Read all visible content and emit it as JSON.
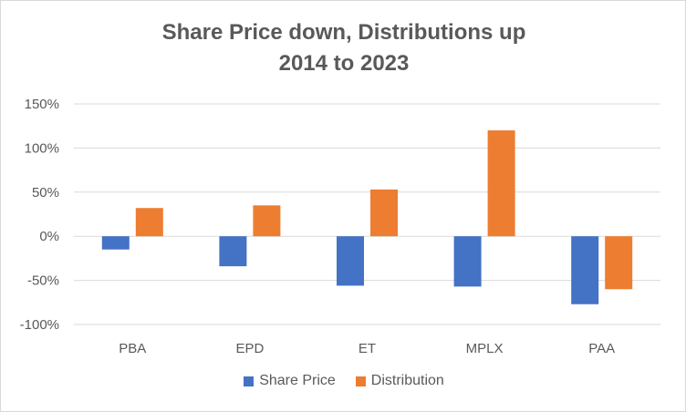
{
  "chart_data": {
    "type": "bar",
    "title_lines": [
      "Share Price down, Distributions up",
      "2014 to 2023"
    ],
    "categories": [
      "PBA",
      "EPD",
      "ET",
      "MPLX",
      "PAA"
    ],
    "series": [
      {
        "name": "Share Price",
        "color": "#4472C4",
        "values": [
          -15,
          -34,
          -56,
          -57,
          -77
        ]
      },
      {
        "name": "Distribution",
        "color": "#ED7D31",
        "values": [
          32,
          35,
          53,
          120,
          -60
        ]
      }
    ],
    "ylim": [
      -100,
      150
    ],
    "yticks": [
      -100,
      -50,
      0,
      50,
      100,
      150
    ],
    "ytick_labels": [
      "-100%",
      "-50%",
      "0%",
      "50%",
      "100%",
      "150%"
    ],
    "grid": true,
    "legend_position": "bottom",
    "xlabel": "",
    "ylabel": ""
  }
}
